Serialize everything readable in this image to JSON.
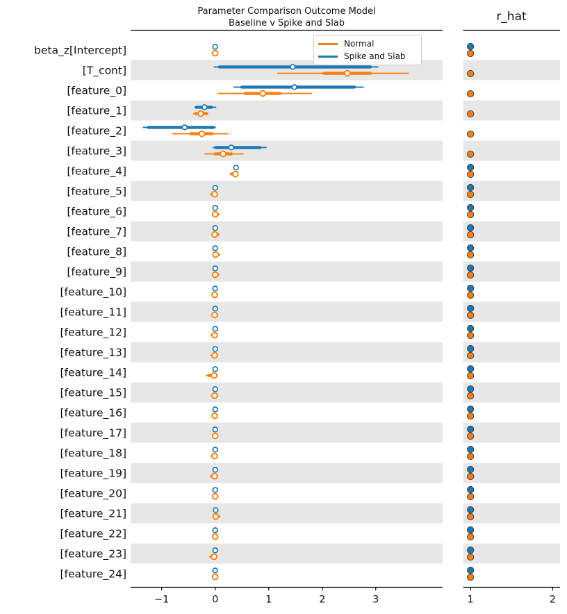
{
  "figure": {
    "title_line1": "Parameter Comparison Outcome Model",
    "title_line2": "Baseline v Spike and Slab",
    "rhat_title": "r_hat"
  },
  "legend": {
    "entries": [
      {
        "label": "Normal",
        "color": "#ff7f0e"
      },
      {
        "label": "Spike and Slab",
        "color": "#1f77b4"
      }
    ]
  },
  "chart_data": {
    "type": "forest",
    "title": "Parameter Comparison Outcome Model — Baseline v Spike and Slab",
    "panels": [
      {
        "name": "estimates",
        "xticks": [
          -1,
          0,
          1,
          2,
          3
        ],
        "xlim": [
          -1.58,
          4.25
        ]
      },
      {
        "name": "r_hat",
        "title": "r_hat",
        "xticks": [
          1,
          2
        ],
        "xlim": [
          0.91,
          2.09
        ]
      }
    ],
    "series": [
      {
        "name": "Normal",
        "color": "#ff7f0e"
      },
      {
        "name": "Spike and Slab",
        "color": "#1f77b4"
      }
    ],
    "interval_format": "[lower, q1, median, q3, upper]",
    "colors": {
      "normal": "#ff7f0e",
      "spike": "#1f77b4",
      "band": "#e7e7e7",
      "spine": "#000000",
      "dot_edge": "#3b3b3b"
    },
    "rows": [
      {
        "label": "beta_z[Intercept]",
        "spike": [
          -0.02,
          -0.01,
          0.0,
          0.01,
          0.02
        ],
        "normal": [
          -0.05,
          -0.02,
          0.0,
          0.02,
          0.05
        ],
        "rhat_spike": 1.0,
        "rhat_normal": 1.0
      },
      {
        "label": "[T_cont]",
        "spike": [
          -0.02,
          0.08,
          1.45,
          2.9,
          3.04
        ],
        "normal": [
          1.17,
          2.03,
          2.47,
          2.9,
          3.61
        ],
        "rhat_spike": null,
        "rhat_normal": 1.0
      },
      {
        "label": "[feature_0]",
        "spike": [
          0.35,
          0.5,
          1.48,
          2.6,
          2.77
        ],
        "normal": [
          0.06,
          0.56,
          0.89,
          1.21,
          1.8
        ],
        "rhat_spike": null,
        "rhat_normal": 1.0
      },
      {
        "label": "[feature_1]",
        "spike": [
          -0.38,
          -0.35,
          -0.2,
          -0.07,
          0.01
        ],
        "normal": [
          -0.4,
          -0.36,
          -0.27,
          -0.16,
          -0.14
        ],
        "rhat_spike": null,
        "rhat_normal": 1.0
      },
      {
        "label": "[feature_2]",
        "spike": [
          -1.34,
          -1.25,
          -0.57,
          -0.03,
          0.0
        ],
        "normal": [
          -0.8,
          -0.45,
          -0.25,
          -0.06,
          0.24
        ],
        "rhat_spike": null,
        "rhat_normal": 1.0
      },
      {
        "label": "[feature_3]",
        "spike": [
          -0.04,
          0.01,
          0.3,
          0.84,
          0.95
        ],
        "normal": [
          -0.19,
          0.0,
          0.15,
          0.3,
          0.52
        ],
        "rhat_spike": null,
        "rhat_normal": 1.0
      },
      {
        "label": "[feature_4]",
        "spike": [
          0.36,
          0.38,
          0.39,
          0.4,
          0.42
        ],
        "normal": [
          0.28,
          0.31,
          0.38,
          0.4,
          0.42
        ],
        "rhat_spike": 1.0,
        "rhat_normal": 1.0
      },
      {
        "label": "[feature_5]",
        "spike": [
          -0.02,
          -0.01,
          0.0,
          0.01,
          0.02
        ],
        "normal": [
          -0.08,
          -0.06,
          -0.01,
          0.01,
          0.03
        ],
        "rhat_spike": 1.0,
        "rhat_normal": 1.0
      },
      {
        "label": "[feature_6]",
        "spike": [
          -0.02,
          -0.01,
          0.0,
          0.01,
          0.02
        ],
        "normal": [
          -0.03,
          -0.01,
          0.0,
          0.05,
          0.07
        ],
        "rhat_spike": 1.0,
        "rhat_normal": 1.0
      },
      {
        "label": "[feature_7]",
        "spike": [
          -0.02,
          -0.01,
          0.0,
          0.01,
          0.02
        ],
        "normal": [
          -0.03,
          -0.01,
          -0.01,
          0.05,
          0.07
        ],
        "rhat_spike": 1.0,
        "rhat_normal": 1.0
      },
      {
        "label": "[feature_8]",
        "spike": [
          -0.02,
          -0.01,
          0.0,
          0.01,
          0.02
        ],
        "normal": [
          -0.02,
          0.0,
          0.01,
          0.06,
          0.08
        ],
        "rhat_spike": 1.0,
        "rhat_normal": 1.0
      },
      {
        "label": "[feature_9]",
        "spike": [
          -0.02,
          -0.01,
          0.0,
          0.01,
          0.02
        ],
        "normal": [
          -0.03,
          -0.01,
          0.0,
          0.05,
          0.07
        ],
        "rhat_spike": 1.0,
        "rhat_normal": 1.0
      },
      {
        "label": "[feature_10]",
        "spike": [
          -0.02,
          -0.01,
          0.0,
          0.01,
          0.02
        ],
        "normal": [
          -0.05,
          -0.03,
          -0.01,
          0.02,
          0.04
        ],
        "rhat_spike": 1.0,
        "rhat_normal": 1.0
      },
      {
        "label": "[feature_11]",
        "spike": [
          -0.02,
          -0.01,
          0.0,
          0.01,
          0.02
        ],
        "normal": [
          -0.04,
          -0.02,
          -0.01,
          0.02,
          0.04
        ],
        "rhat_spike": 1.0,
        "rhat_normal": 1.0
      },
      {
        "label": "[feature_12]",
        "spike": [
          -0.02,
          -0.01,
          0.0,
          0.01,
          0.02
        ],
        "normal": [
          -0.08,
          -0.05,
          -0.01,
          0.01,
          0.03
        ],
        "rhat_spike": 1.0,
        "rhat_normal": 1.0
      },
      {
        "label": "[feature_13]",
        "spike": [
          -0.02,
          -0.01,
          0.0,
          0.01,
          0.02
        ],
        "normal": [
          -0.08,
          -0.05,
          -0.01,
          0.01,
          0.03
        ],
        "rhat_spike": 1.0,
        "rhat_normal": 1.0
      },
      {
        "label": "[feature_14]",
        "spike": [
          -0.02,
          -0.01,
          0.0,
          0.01,
          0.02
        ],
        "normal": [
          -0.16,
          -0.12,
          -0.02,
          0.01,
          0.03
        ],
        "rhat_spike": 1.0,
        "rhat_normal": 1.0
      },
      {
        "label": "[feature_15]",
        "spike": [
          -0.02,
          -0.01,
          0.0,
          0.01,
          0.02
        ],
        "normal": [
          -0.07,
          -0.04,
          -0.01,
          0.01,
          0.03
        ],
        "rhat_spike": 1.0,
        "rhat_normal": 1.0
      },
      {
        "label": "[feature_16]",
        "spike": [
          -0.02,
          -0.01,
          0.0,
          0.01,
          0.02
        ],
        "normal": [
          -0.05,
          -0.03,
          -0.01,
          0.02,
          0.04
        ],
        "rhat_spike": 1.0,
        "rhat_normal": 1.0
      },
      {
        "label": "[feature_17]",
        "spike": [
          -0.02,
          -0.01,
          0.0,
          0.01,
          0.02
        ],
        "normal": [
          -0.04,
          -0.02,
          0.0,
          0.02,
          0.04
        ],
        "rhat_spike": 1.0,
        "rhat_normal": 1.0
      },
      {
        "label": "[feature_18]",
        "spike": [
          -0.02,
          -0.01,
          0.0,
          0.01,
          0.02
        ],
        "normal": [
          -0.08,
          -0.05,
          -0.01,
          0.01,
          0.03
        ],
        "rhat_spike": 1.0,
        "rhat_normal": 1.0
      },
      {
        "label": "[feature_19]",
        "spike": [
          -0.02,
          -0.01,
          0.0,
          0.01,
          0.02
        ],
        "normal": [
          -0.09,
          -0.06,
          -0.01,
          0.01,
          0.03
        ],
        "rhat_spike": 1.0,
        "rhat_normal": 1.0
      },
      {
        "label": "[feature_20]",
        "spike": [
          -0.02,
          -0.01,
          0.0,
          0.01,
          0.02
        ],
        "normal": [
          -0.05,
          -0.02,
          0.0,
          0.02,
          0.04
        ],
        "rhat_spike": 1.0,
        "rhat_normal": 1.0
      },
      {
        "label": "[feature_21]",
        "spike": [
          -0.02,
          -0.01,
          0.01,
          0.01,
          0.02
        ],
        "normal": [
          -0.02,
          0.0,
          0.01,
          0.06,
          0.08
        ],
        "rhat_spike": 1.0,
        "rhat_normal": 1.0
      },
      {
        "label": "[feature_22]",
        "spike": [
          -0.02,
          -0.01,
          0.0,
          0.01,
          0.02
        ],
        "normal": [
          -0.05,
          -0.02,
          0.0,
          0.02,
          0.04
        ],
        "rhat_spike": 1.0,
        "rhat_normal": 1.0
      },
      {
        "label": "[feature_23]",
        "spike": [
          -0.02,
          -0.01,
          0.0,
          0.01,
          0.02
        ],
        "normal": [
          -0.1,
          -0.07,
          -0.02,
          0.01,
          0.03
        ],
        "rhat_spike": 1.0,
        "rhat_normal": 1.0
      },
      {
        "label": "[feature_24]",
        "spike": [
          -0.02,
          -0.01,
          0.0,
          0.01,
          0.02
        ],
        "normal": [
          -0.05,
          -0.02,
          0.0,
          0.02,
          0.04
        ],
        "rhat_spike": 1.0,
        "rhat_normal": 1.0
      }
    ]
  }
}
